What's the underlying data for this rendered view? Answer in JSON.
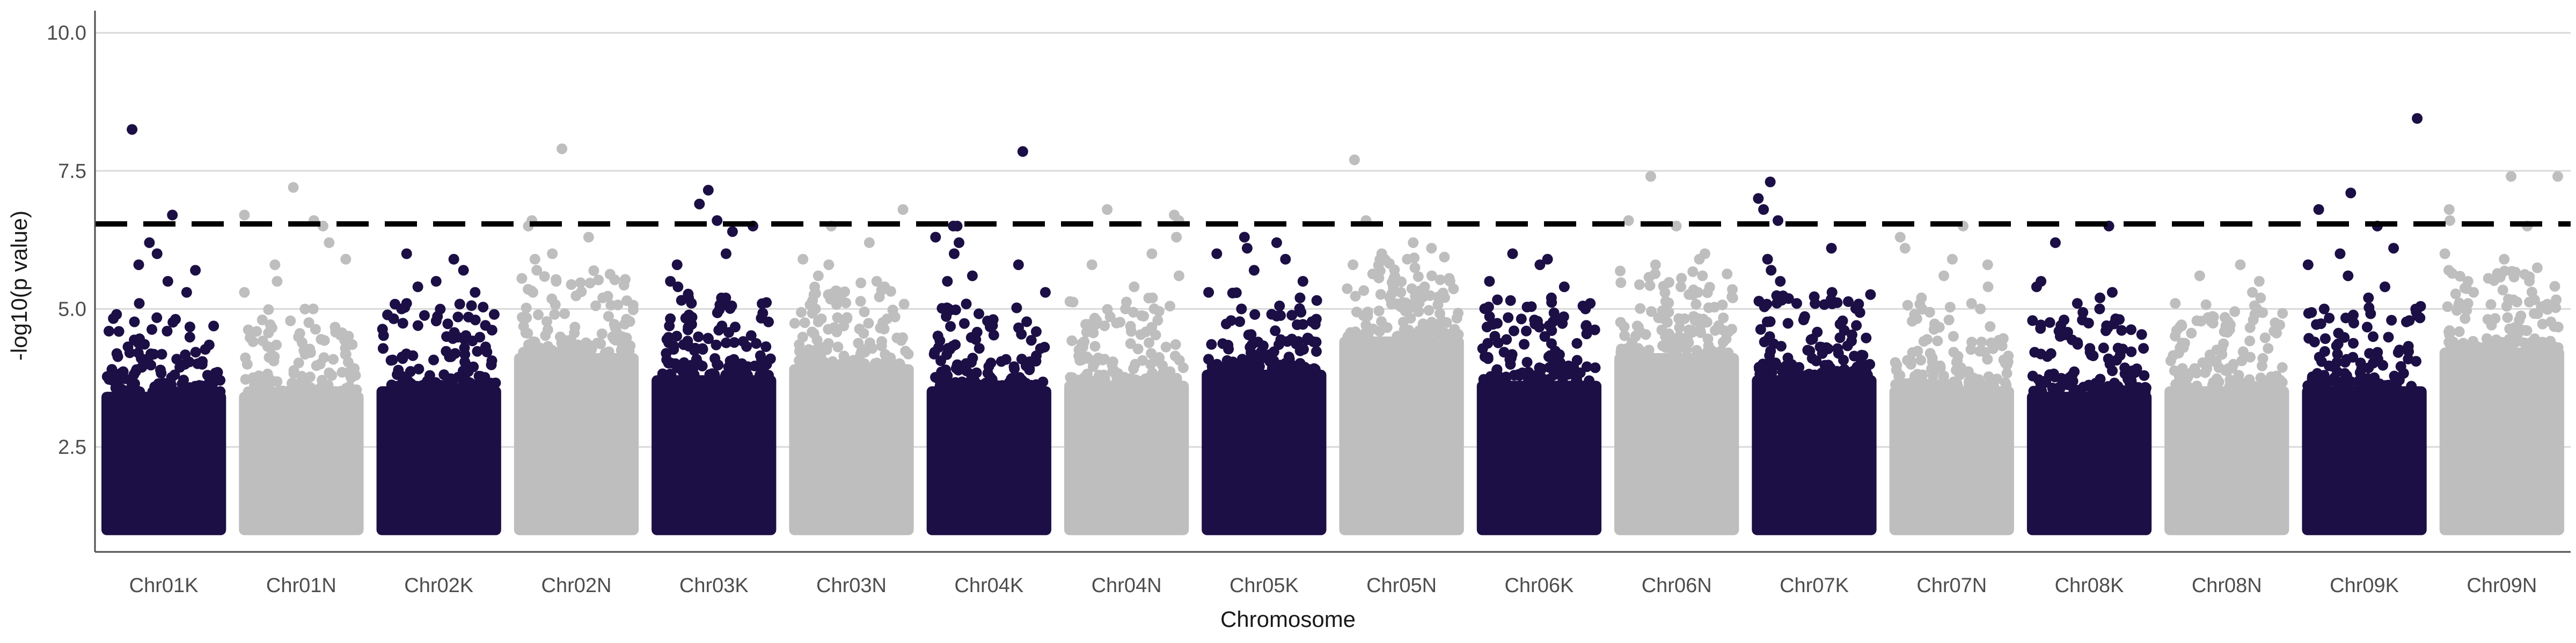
{
  "chart_data": {
    "type": "scatter",
    "subtype": "manhattan",
    "title": "",
    "xlabel": "Chromosome",
    "ylabel": "-log10(p value)",
    "ylim": [
      0.6,
      10.4
    ],
    "yticks": [
      2.5,
      5.0,
      7.5,
      10.0
    ],
    "ytick_labels": [
      "2.5",
      "5.0",
      "7.5",
      "10.0"
    ],
    "grid": "horizontal",
    "legend": "none",
    "significance_threshold": 6.54,
    "threshold_style": "dashed",
    "colors": {
      "odd_chromosome": "#1c0f45",
      "even_chromosome": "#bebebe",
      "threshold": "#000000",
      "grid": "#d9d9d9",
      "axis": "#4d4d4d"
    },
    "baseline_min": 1.0,
    "chromosomes": [
      {
        "name": "Chr01K",
        "color": "#1c0f45",
        "dense_top": 3.5,
        "top_hits": [
          8.25,
          6.7,
          6.2,
          6.0,
          5.8,
          5.7,
          5.5,
          5.3,
          5.1,
          4.9
        ]
      },
      {
        "name": "Chr01N",
        "color": "#bebebe",
        "dense_top": 3.5,
        "top_hits": [
          7.2,
          6.7,
          6.6,
          6.5,
          6.2,
          5.9,
          5.8,
          5.5,
          5.3,
          5.0
        ]
      },
      {
        "name": "Chr02K",
        "color": "#1c0f45",
        "dense_top": 3.6,
        "top_hits": [
          6.0,
          5.9,
          5.7,
          5.5,
          5.4,
          5.3,
          5.1,
          5.0,
          4.9,
          4.8
        ]
      },
      {
        "name": "Chr02N",
        "color": "#bebebe",
        "dense_top": 4.2,
        "top_hits": [
          7.9,
          6.6,
          6.5,
          6.3,
          6.0,
          5.9,
          5.7,
          5.5,
          5.3,
          5.2
        ]
      },
      {
        "name": "Chr03K",
        "color": "#1c0f45",
        "dense_top": 3.8,
        "top_hits": [
          7.15,
          6.9,
          6.6,
          6.5,
          6.4,
          6.0,
          5.8,
          5.5,
          5.4,
          5.2
        ]
      },
      {
        "name": "Chr03N",
        "color": "#bebebe",
        "dense_top": 4.0,
        "top_hits": [
          6.8,
          6.5,
          6.2,
          5.9,
          5.8,
          5.6,
          5.5,
          5.4,
          5.2,
          5.0
        ]
      },
      {
        "name": "Chr04K",
        "color": "#1c0f45",
        "dense_top": 3.6,
        "top_hits": [
          7.85,
          6.5,
          6.5,
          6.3,
          6.2,
          6.0,
          5.8,
          5.6,
          5.5,
          5.3
        ]
      },
      {
        "name": "Chr04N",
        "color": "#bebebe",
        "dense_top": 3.7,
        "top_hits": [
          6.8,
          6.7,
          6.6,
          6.3,
          6.0,
          5.8,
          5.6,
          5.4,
          5.2,
          5.0
        ]
      },
      {
        "name": "Chr05K",
        "color": "#1c0f45",
        "dense_top": 3.9,
        "top_hits": [
          6.3,
          6.2,
          6.1,
          6.0,
          5.9,
          5.7,
          5.5,
          5.3,
          5.2,
          5.0
        ]
      },
      {
        "name": "Chr05N",
        "color": "#bebebe",
        "dense_top": 4.5,
        "top_hits": [
          7.7,
          6.6,
          6.2,
          6.1,
          6.0,
          5.9,
          5.8,
          5.6,
          5.5,
          5.4
        ]
      },
      {
        "name": "Chr06K",
        "color": "#1c0f45",
        "dense_top": 3.7,
        "top_hits": [
          6.0,
          5.9,
          5.8,
          5.5,
          5.4,
          5.2,
          5.1,
          5.0,
          4.8,
          4.6
        ]
      },
      {
        "name": "Chr06N",
        "color": "#bebebe",
        "dense_top": 4.2,
        "top_hits": [
          7.4,
          6.6,
          6.5,
          6.0,
          5.9,
          5.8,
          5.6,
          5.4,
          5.3,
          5.2
        ]
      },
      {
        "name": "Chr07K",
        "color": "#1c0f45",
        "dense_top": 3.8,
        "top_hits": [
          7.3,
          7.0,
          6.8,
          6.6,
          6.1,
          5.9,
          5.7,
          5.5,
          5.3,
          5.1
        ]
      },
      {
        "name": "Chr07N",
        "color": "#bebebe",
        "dense_top": 3.6,
        "top_hits": [
          6.5,
          6.3,
          6.1,
          5.9,
          5.8,
          5.6,
          5.4,
          5.2,
          5.0,
          4.8
        ]
      },
      {
        "name": "Chr08K",
        "color": "#1c0f45",
        "dense_top": 3.5,
        "top_hits": [
          6.5,
          6.2,
          5.5,
          5.4,
          5.3,
          5.2,
          5.1,
          5.0,
          4.8,
          4.7
        ]
      },
      {
        "name": "Chr08N",
        "color": "#bebebe",
        "dense_top": 3.6,
        "top_hits": [
          5.8,
          5.6,
          5.5,
          5.3,
          5.2,
          5.1,
          5.0,
          4.9,
          4.8,
          4.6
        ]
      },
      {
        "name": "Chr09K",
        "color": "#1c0f45",
        "dense_top": 3.6,
        "top_hits": [
          8.45,
          7.1,
          6.8,
          6.5,
          6.1,
          6.0,
          5.8,
          5.6,
          5.4,
          5.2
        ]
      },
      {
        "name": "Chr09N",
        "color": "#bebebe",
        "dense_top": 4.3,
        "top_hits": [
          7.4,
          7.4,
          6.8,
          6.6,
          6.5,
          6.0,
          5.9,
          5.7,
          5.5,
          5.3
        ]
      }
    ]
  }
}
